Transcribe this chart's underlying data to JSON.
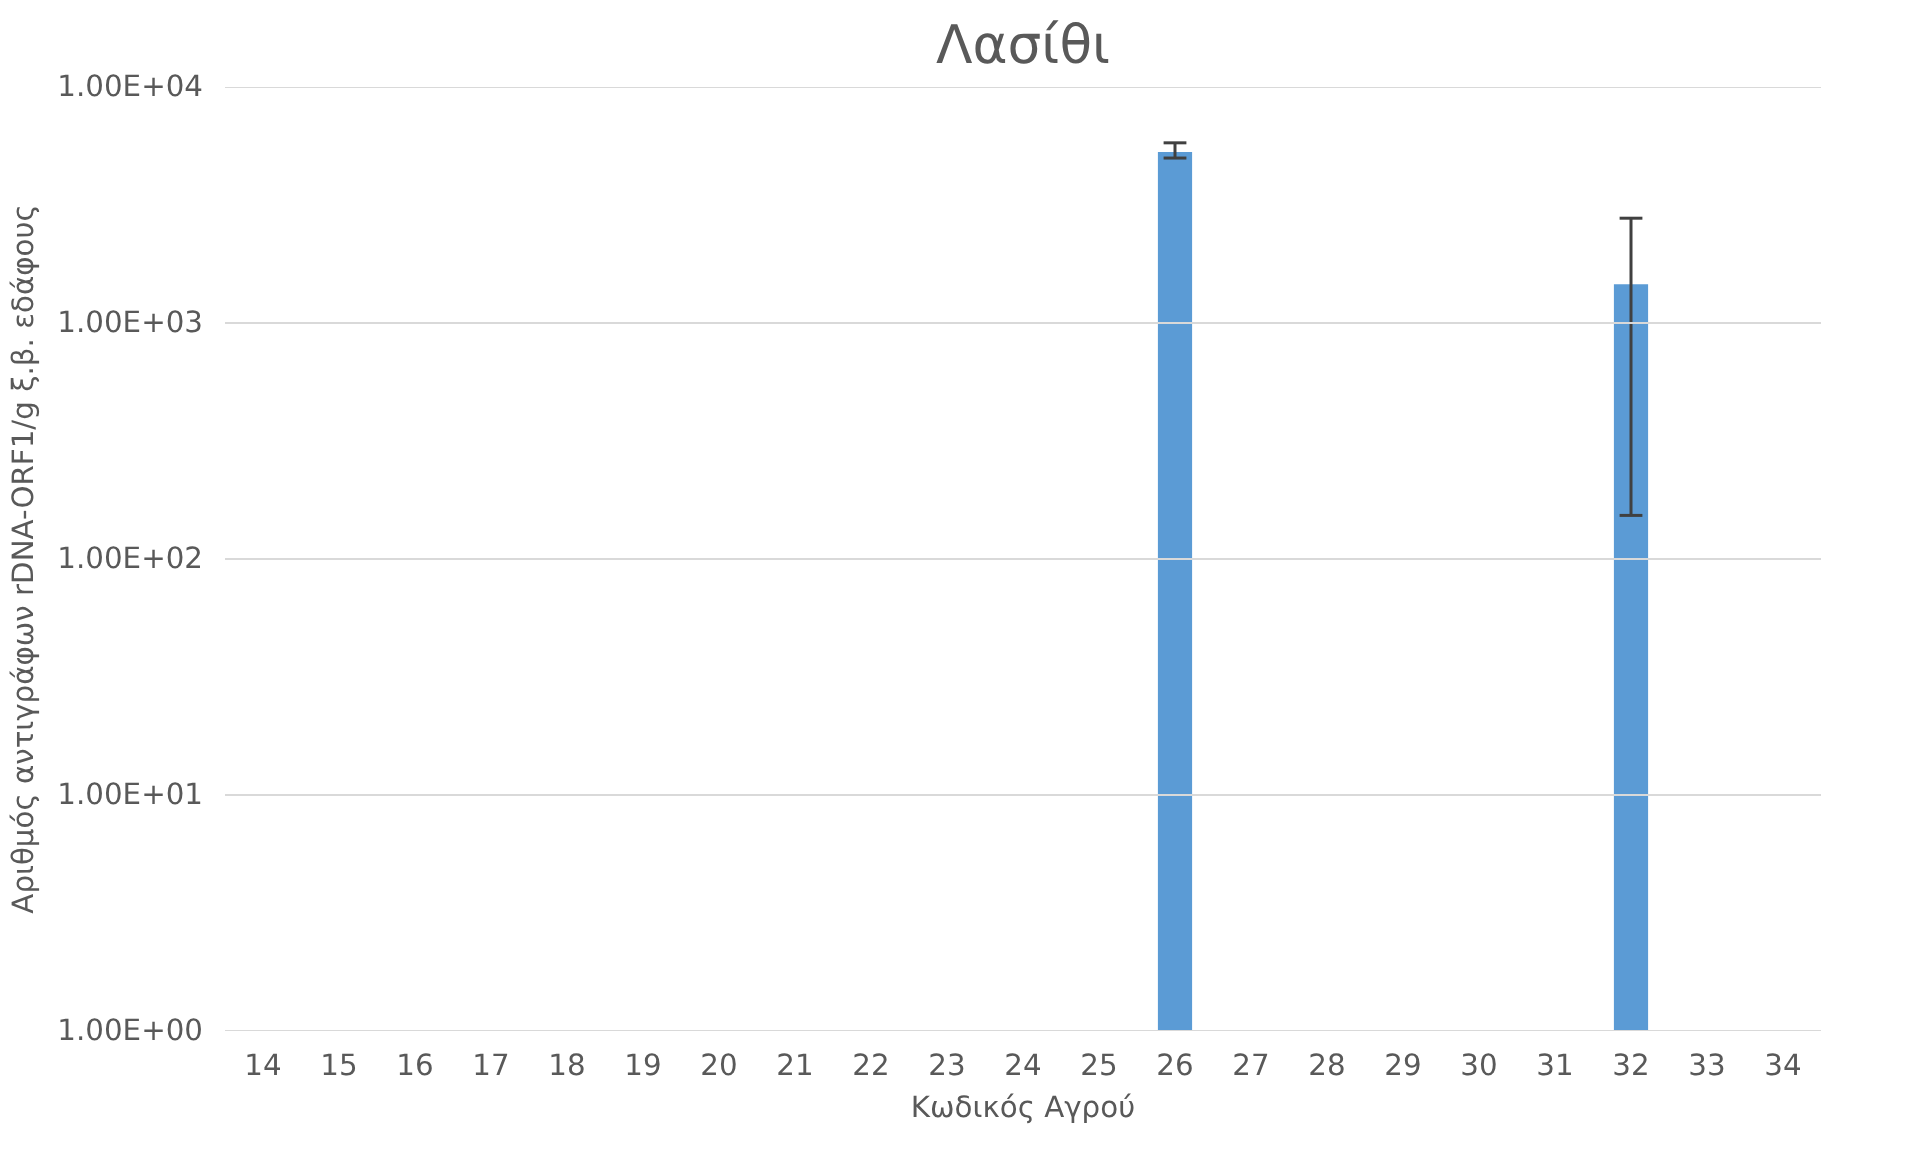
{
  "chart_data": {
    "type": "bar",
    "title": "Λασίθι",
    "xlabel": "Κωδικός Αγρού",
    "ylabel": "Αριθμός αντιγράφων rDNA-ORF1/g ξ.β. εδάφους",
    "categories": [
      "14",
      "15",
      "16",
      "17",
      "18",
      "19",
      "20",
      "21",
      "22",
      "23",
      "24",
      "25",
      "26",
      "27",
      "28",
      "29",
      "30",
      "31",
      "32",
      "33",
      "34"
    ],
    "values": [
      null,
      null,
      null,
      null,
      null,
      null,
      null,
      null,
      null,
      null,
      null,
      null,
      5300,
      null,
      null,
      null,
      null,
      null,
      1460,
      null,
      null
    ],
    "errors": [
      null,
      null,
      null,
      null,
      null,
      null,
      null,
      null,
      null,
      null,
      null,
      null,
      [
        5000,
        5800
      ],
      null,
      null,
      null,
      null,
      null,
      [
        153,
        2780
      ],
      null,
      null
    ],
    "color": "#5b9bd5",
    "log": true,
    "ylim": [
      1,
      10000
    ],
    "yticks": [
      {
        "value": 1,
        "label": "1.00E+00"
      },
      {
        "value": 10,
        "label": "1.00E+01"
      },
      {
        "value": 100,
        "label": "1.00E+02"
      },
      {
        "value": 1000,
        "label": "1.00E+03"
      },
      {
        "value": 10000,
        "label": "1.00E+04"
      }
    ],
    "grid": "y"
  }
}
